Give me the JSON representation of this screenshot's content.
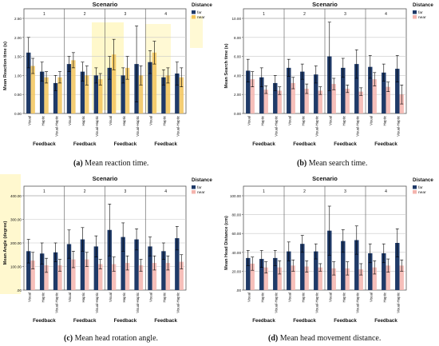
{
  "colors": {
    "far": "#1f3a68",
    "near": "#f2c45a",
    "near_pink": "#f4b4ae",
    "frame": "#555555",
    "grid": "#c8c8c8",
    "highlight_yellow": "#fff2a0"
  },
  "legend": {
    "title": "Distance",
    "items": [
      "far",
      "near"
    ]
  },
  "captions": [
    {
      "tag": "(a)",
      "text": "Mean reaction time."
    },
    {
      "tag": "(b)",
      "text": "Mean search time."
    },
    {
      "tag": "(c)",
      "text": "Mean head rotation angle."
    },
    {
      "tag": "(d)",
      "text": "Mean head movement distance."
    }
  ],
  "chart_data": [
    {
      "type": "bar",
      "title": "Scenario",
      "facets": [
        "1",
        "2",
        "3",
        "4"
      ],
      "categories": [
        "Visual",
        "Haptic",
        "Visual-Haptic"
      ],
      "xlabel": "Feedback",
      "ylabel": "Mean Reaction time (s)",
      "ylim": [
        0,
        2.5
      ],
      "yticks": [
        "0.00",
        "0.50",
        "1.00",
        "1.50",
        "2.00",
        "2.50"
      ],
      "near_color": "yellow",
      "series": [
        {
          "name": "far",
          "values": [
            [
              1.6,
              1.1,
              0.8
            ],
            [
              1.3,
              1.1,
              1.0
            ],
            [
              1.2,
              1.0,
              1.3
            ],
            [
              1.35,
              0.95,
              1.05
            ]
          ],
          "errors": [
            [
              0.4,
              0.25,
              0.2
            ],
            [
              0.2,
              0.25,
              0.2
            ],
            [
              0.3,
              0.2,
              1.0
            ],
            [
              0.3,
              0.2,
              0.3
            ]
          ]
        },
        {
          "name": "near",
          "values": [
            [
              1.25,
              0.95,
              0.95
            ],
            [
              1.4,
              1.0,
              0.9
            ],
            [
              1.55,
              1.2,
              1.0
            ],
            [
              1.6,
              1.0,
              0.95
            ]
          ],
          "errors": [
            [
              0.2,
              0.15,
              0.15
            ],
            [
              0.2,
              0.25,
              0.15
            ],
            [
              0.4,
              0.3,
              0.25
            ],
            [
              0.3,
              0.2,
              0.25
            ]
          ]
        }
      ]
    },
    {
      "type": "bar",
      "title": "Scenario",
      "facets": [
        "1",
        "2",
        "3",
        "4"
      ],
      "categories": [
        "Visual",
        "Haptic",
        "Visual-Haptic"
      ],
      "xlabel": "Feedback",
      "ylabel": "Mean Search time (s)",
      "ylim": [
        0,
        10
      ],
      "yticks": [
        "0.00",
        "2.00",
        "4.00",
        "6.00",
        "8.00",
        "10.00"
      ],
      "near_color": "pink",
      "series": [
        {
          "name": "far",
          "values": [
            [
              4.5,
              3.8,
              3.2
            ],
            [
              4.8,
              4.4,
              4.1
            ],
            [
              6.0,
              4.8,
              5.2
            ],
            [
              4.9,
              4.3,
              4.7
            ]
          ],
          "errors": [
            [
              1.2,
              1.0,
              0.8
            ],
            [
              0.9,
              0.8,
              0.9
            ],
            [
              3.6,
              1.0,
              1.5
            ],
            [
              1.2,
              0.9,
              1.4
            ]
          ]
        },
        {
          "name": "near",
          "values": [
            [
              3.6,
              2.5,
              2.4
            ],
            [
              3.2,
              2.6,
              2.4
            ],
            [
              3.1,
              2.6,
              2.3
            ],
            [
              3.6,
              2.8,
              2.0
            ]
          ],
          "errors": [
            [
              0.8,
              0.4,
              0.4
            ],
            [
              0.6,
              0.5,
              0.4
            ],
            [
              0.6,
              0.4,
              0.4
            ],
            [
              0.7,
              0.5,
              1.0
            ]
          ]
        }
      ]
    },
    {
      "type": "bar",
      "title": "Scenario",
      "facets": [
        "1",
        "2",
        "3",
        "4"
      ],
      "categories": [
        "Visual",
        "Haptic",
        "Visual-Haptic"
      ],
      "xlabel": "Feedback",
      "ylabel": "Mean Angle (degree)",
      "ylim": [
        0,
        400
      ],
      "yticks": [
        ".00",
        "100.00",
        "200.00",
        "300.00",
        "400.00"
      ],
      "near_color": "pink",
      "series": [
        {
          "name": "far",
          "values": [
            [
              165,
              155,
              160
            ],
            [
              195,
              215,
              185
            ],
            [
              255,
              225,
              215
            ],
            [
              185,
              165,
              220
            ]
          ],
          "errors": [
            [
              50,
              45,
              40
            ],
            [
              60,
              50,
              45
            ],
            [
              110,
              60,
              45
            ],
            [
              40,
              35,
              50
            ]
          ]
        },
        {
          "name": "near",
          "values": [
            [
              125,
              105,
              105
            ],
            [
              130,
              130,
              110
            ],
            [
              110,
              115,
              105
            ],
            [
              115,
              115,
              120
            ]
          ],
          "errors": [
            [
              35,
              30,
              25
            ],
            [
              35,
              30,
              20
            ],
            [
              30,
              30,
              25
            ],
            [
              30,
              30,
              30
            ]
          ]
        }
      ]
    },
    {
      "type": "bar",
      "title": "Scenario",
      "facets": [
        "1",
        "2",
        "3",
        "4"
      ],
      "categories": [
        "Visual",
        "Haptic",
        "Visual-Haptic"
      ],
      "xlabel": "Feedback",
      "ylabel": "Mean Head Distance (cm)",
      "ylim": [
        0,
        100
      ],
      "yticks": [
        ".00",
        "20.00",
        "40.00",
        "60.00",
        "80.00",
        "100.00"
      ],
      "near_color": "pink",
      "series": [
        {
          "name": "far",
          "values": [
            [
              34,
              33,
              34
            ],
            [
              41,
              49,
              41
            ],
            [
              63,
              52,
              53
            ],
            [
              39,
              39,
              50
            ]
          ],
          "errors": [
            [
              8,
              9,
              8
            ],
            [
              10,
              9,
              8
            ],
            [
              26,
              12,
              15
            ],
            [
              10,
              10,
              15
            ]
          ]
        },
        {
          "name": "near",
          "values": [
            [
              28,
              24,
              24
            ],
            [
              26,
              25,
              24
            ],
            [
              23,
              23,
              22
            ],
            [
              24,
              26,
              26
            ]
          ],
          "errors": [
            [
              7,
              6,
              7
            ],
            [
              6,
              6,
              4
            ],
            [
              7,
              7,
              6
            ],
            [
              7,
              7,
              6
            ]
          ]
        }
      ]
    }
  ]
}
